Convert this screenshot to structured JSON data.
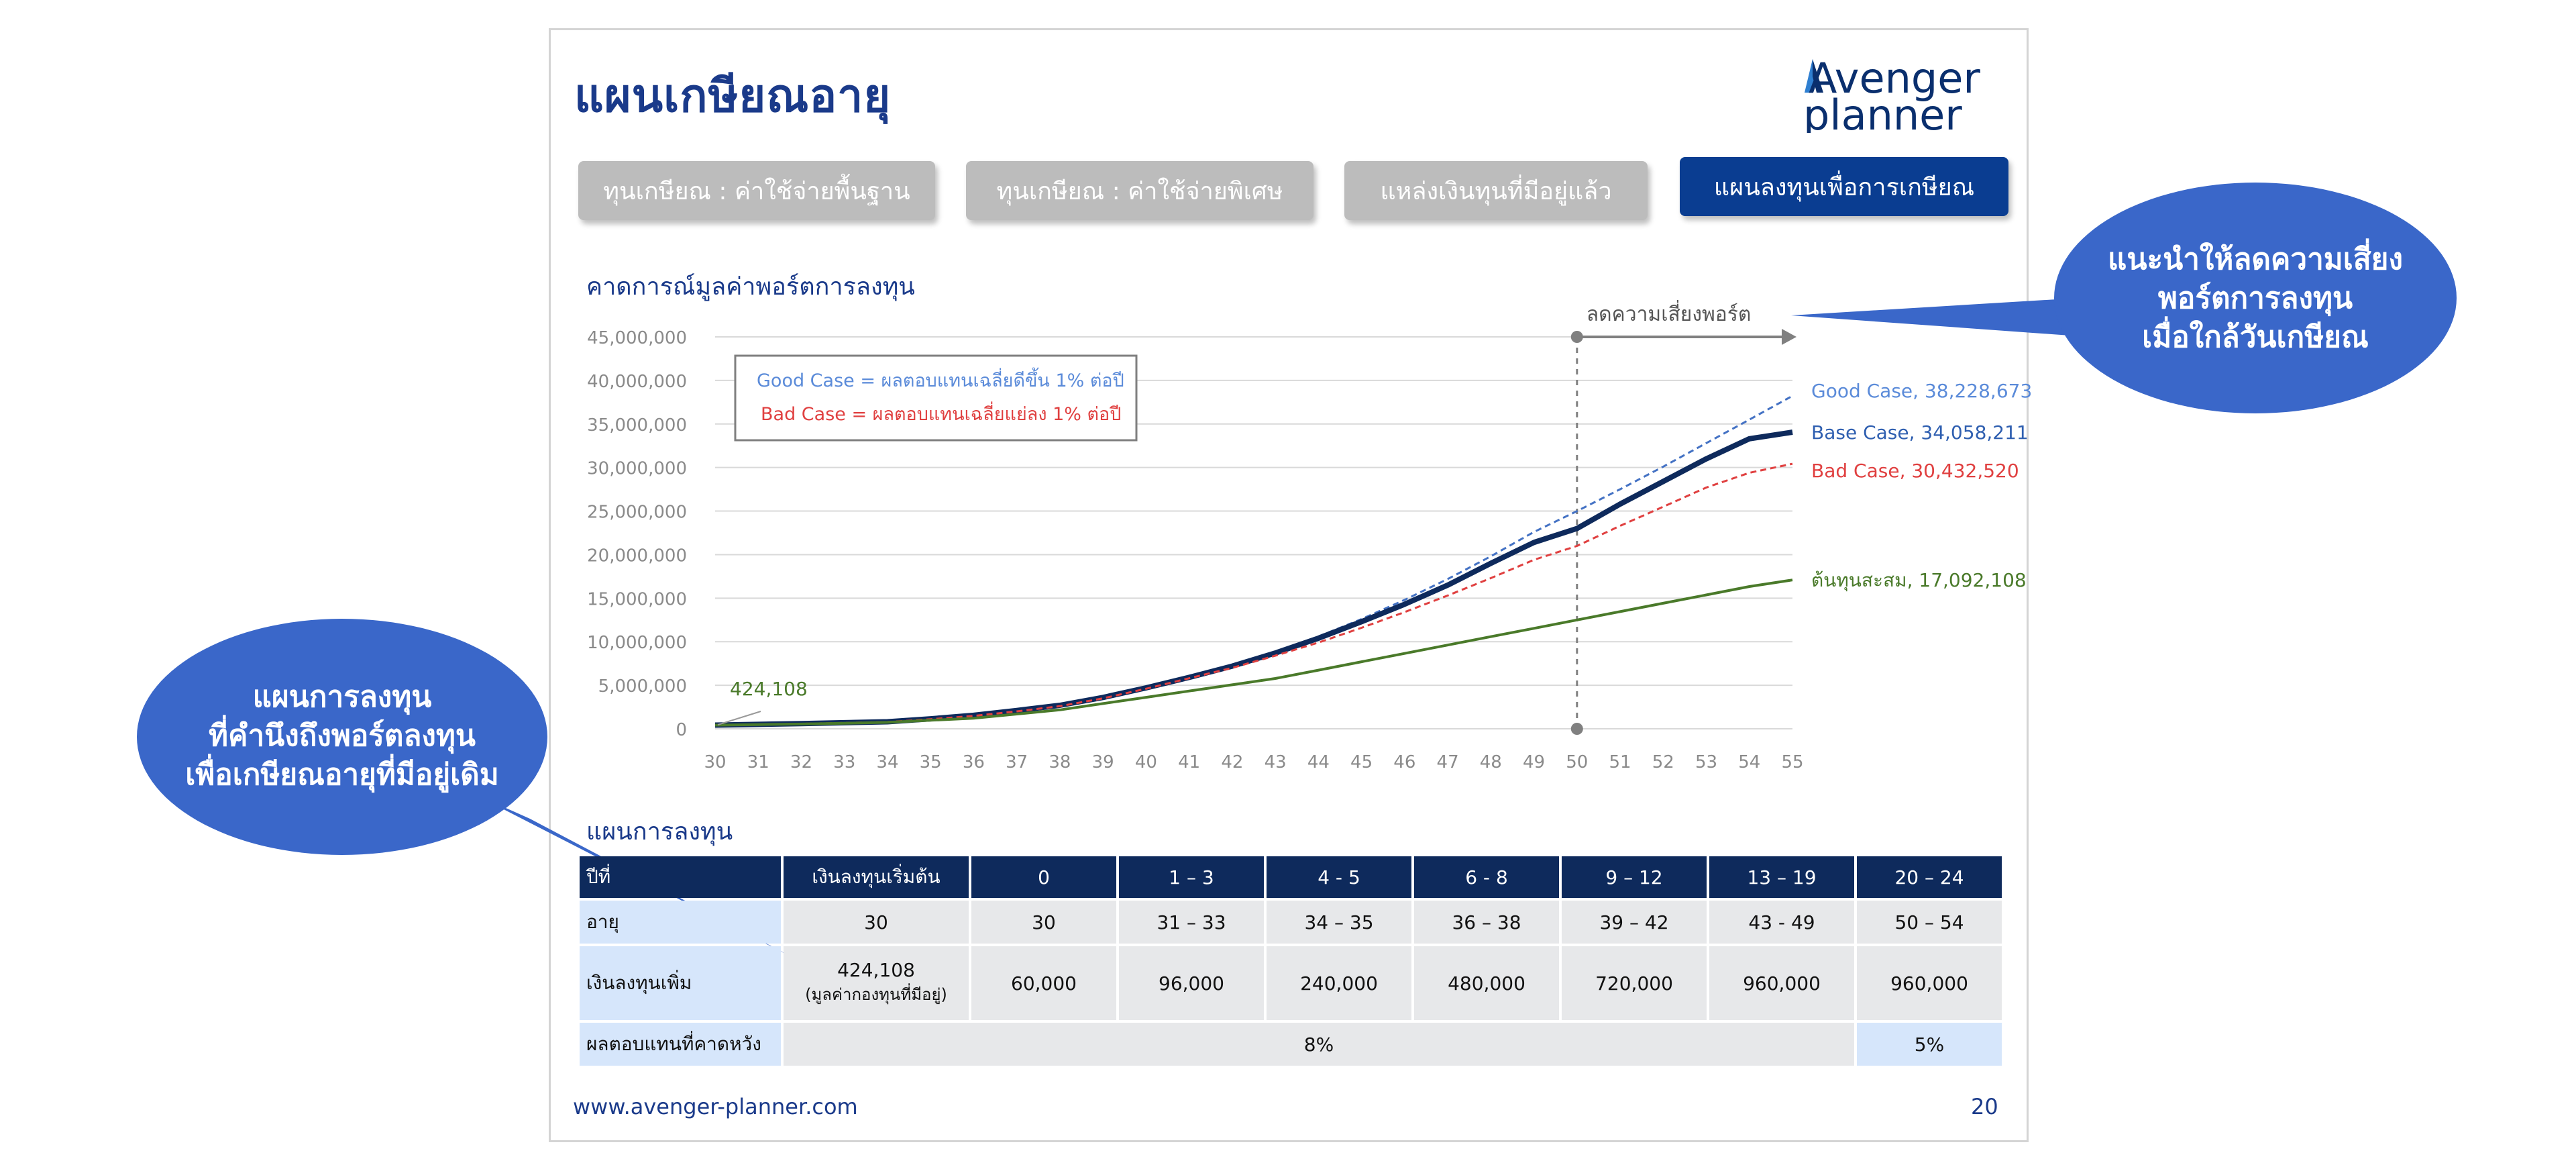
{
  "page_title": "แผนเกษียณอายุ",
  "logo": {
    "line1": "Avenger",
    "line2": "planner",
    "mark_color": "#2f7fd1"
  },
  "tabs": [
    {
      "label": "ทุนเกษียณ : ค่าใช้จ่ายพื้นฐาน",
      "active": false
    },
    {
      "label": "ทุนเกษียณ : ค่าใช้จ่ายพิเศษ",
      "active": false
    },
    {
      "label": "แหล่งเงินทุนที่มีอยู่แล้ว",
      "active": false
    },
    {
      "label": "แผนลงทุนเพื่อการเกษียณ",
      "active": true
    }
  ],
  "chart_subtitle": "คาดการณ์มูลค่าพอร์ตการลงทุน",
  "table_subtitle": "แผนการลงทุน",
  "callouts": {
    "right": [
      "แนะนำให้ลดความเสี่ยง",
      "พอร์ตการลงทุน",
      "เมื่อใกล้วันเกษียณ"
    ],
    "left": [
      "แผนการลงทุน",
      "ที่คำนึงถึงพอร์ตลงทุน",
      "เพื่อเกษียณอายุที่มีอยู่เดิม"
    ]
  },
  "chart_data": {
    "type": "line",
    "x": [
      30,
      31,
      32,
      33,
      34,
      35,
      36,
      37,
      38,
      39,
      40,
      41,
      42,
      43,
      44,
      45,
      46,
      47,
      48,
      49,
      50,
      51,
      52,
      53,
      54,
      55
    ],
    "xlabel": "",
    "ylabel": "",
    "ylim": [
      0,
      45000000
    ],
    "yticks": [
      "0",
      "5,000,000",
      "10,000,000",
      "15,000,000",
      "20,000,000",
      "25,000,000",
      "30,000,000",
      "35,000,000",
      "40,000,000",
      "45,000,000"
    ],
    "xticks": [
      "30",
      "31",
      "32",
      "33",
      "34",
      "35",
      "36",
      "37",
      "38",
      "39",
      "40",
      "41",
      "42",
      "43",
      "44",
      "45",
      "46",
      "47",
      "48",
      "49",
      "50",
      "51",
      "52",
      "53",
      "54",
      "55"
    ],
    "series": [
      {
        "name": "Good Case",
        "color": "#4472c4",
        "style": "dashed",
        "values": [
          424108,
          520000,
          620000,
          730000,
          850000,
          1200000,
          1600000,
          2200000,
          2800000,
          3700000,
          4800000,
          6000000,
          7300000,
          8800000,
          10600000,
          12600000,
          14800000,
          17200000,
          19800000,
          22600000,
          25000000,
          27500000,
          30100000,
          32800000,
          35500000,
          38228673
        ],
        "end_label": "Good Case, 38,228,673"
      },
      {
        "name": "Base Case",
        "color": "#0e2a5c",
        "style": "solid-bold",
        "values": [
          424108,
          510000,
          600000,
          700000,
          810000,
          1150000,
          1550000,
          2100000,
          2700000,
          3600000,
          4700000,
          5900000,
          7200000,
          8700000,
          10400000,
          12300000,
          14300000,
          16500000,
          19000000,
          21400000,
          23000000,
          25800000,
          28400000,
          31000000,
          33300000,
          34058211
        ],
        "end_label": "Base Case, 34,058,211"
      },
      {
        "name": "Bad Case",
        "color": "#e04040",
        "style": "dashed",
        "values": [
          424108,
          500000,
          580000,
          670000,
          780000,
          1100000,
          1480000,
          2000000,
          2600000,
          3500000,
          4600000,
          5800000,
          7000000,
          8400000,
          9900000,
          11600000,
          13400000,
          15300000,
          17300000,
          19400000,
          21000000,
          23300000,
          25500000,
          27700000,
          29400000,
          30432520
        ],
        "end_label": "Bad Case, 30,432,520"
      },
      {
        "name": "ต้นทุนสะสม",
        "color": "#4a7a2a",
        "style": "solid",
        "values": [
          424108,
          484108,
          544108,
          640108,
          736108,
          976108,
          1216108,
          1696108,
          2176108,
          2896108,
          3616108,
          4336108,
          5056108,
          5776108,
          6736108,
          7696108,
          8656108,
          9616108,
          10576108,
          11536108,
          12496108,
          13456108,
          14416108,
          15376108,
          16336108,
          17092108
        ],
        "end_label": "ต้นทุนสะสม, 17,092,108"
      }
    ],
    "start_label": "424,108",
    "legend_box": [
      "Good Case = ผลตอบแทนเฉลี่ยดีขึ้น 1% ต่อปี",
      "Bad Case = ผลตอบแทนเฉลี่ยแย่ลง 1% ต่อปี"
    ],
    "annotation": {
      "x": 50,
      "text": "ลดความเสี่ยงพอร์ต"
    }
  },
  "table": {
    "headers": [
      "ปีที่",
      "เงินลงทุนเริ่มต้น",
      "0",
      "1 – 3",
      "4 - 5",
      "6 - 8",
      "9 – 12",
      "13 – 19",
      "20 – 24"
    ],
    "age_row": [
      "อายุ",
      "30",
      "30",
      "31 – 33",
      "34 – 35",
      "36 – 38",
      "39 – 42",
      "43  - 49",
      "50 – 54"
    ],
    "invest_row": {
      "label": "เงินลงทุนเพิ่ม",
      "initial": "424,108",
      "initial_note": "(มูลค่ากองทุนที่มีอยู่)",
      "values": [
        "60,000",
        "96,000",
        "240,000",
        "480,000",
        "720,000",
        "960,000",
        "960,000"
      ]
    },
    "return_row": {
      "label": "ผลตอบแทนที่คาดหวัง",
      "main": "8%",
      "last": "5%"
    }
  },
  "footer": {
    "url": "www.avenger-planner.com",
    "page": "20"
  }
}
